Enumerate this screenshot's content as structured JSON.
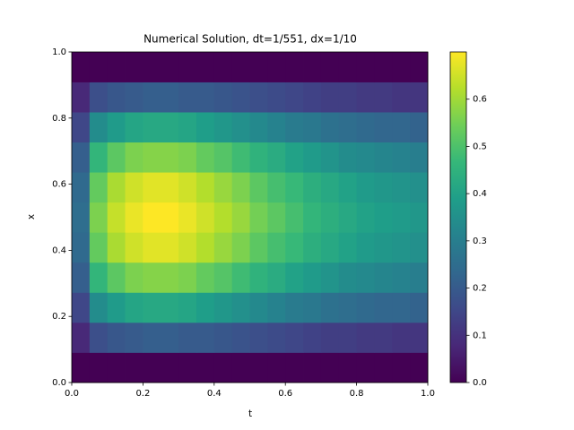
{
  "chart_data": {
    "type": "heatmap",
    "title": "Numerical Solution, dt=1/551, dx=1/10",
    "xlabel": "t",
    "ylabel": "x",
    "colormap": "viridis",
    "x_edges": [
      0,
      0.05,
      0.1,
      0.15,
      0.2,
      0.25,
      0.3,
      0.35,
      0.4,
      0.45,
      0.5,
      0.55,
      0.6,
      0.65,
      0.7,
      0.75,
      0.8,
      0.85,
      0.9,
      0.95,
      1
    ],
    "y_edges": [
      0,
      0.0909,
      0.1818,
      0.2727,
      0.3636,
      0.4545,
      0.5455,
      0.6364,
      0.7273,
      0.8182,
      0.9091,
      1
    ],
    "z": [
      [
        0,
        0,
        0,
        0,
        0,
        0,
        0,
        0,
        0,
        0,
        0,
        0,
        0,
        0,
        0,
        0,
        0,
        0,
        0,
        0
      ],
      [
        0.08,
        0.17,
        0.19,
        0.2,
        0.21,
        0.21,
        0.2,
        0.2,
        0.19,
        0.18,
        0.17,
        0.16,
        0.15,
        0.14,
        0.13,
        0.13,
        0.12,
        0.12,
        0.11,
        0.11
      ],
      [
        0.15,
        0.34,
        0.38,
        0.41,
        0.42,
        0.42,
        0.41,
        0.39,
        0.37,
        0.35,
        0.33,
        0.31,
        0.29,
        0.28,
        0.26,
        0.25,
        0.24,
        0.23,
        0.23,
        0.22
      ],
      [
        0.21,
        0.46,
        0.52,
        0.56,
        0.57,
        0.57,
        0.56,
        0.53,
        0.51,
        0.48,
        0.45,
        0.43,
        0.4,
        0.38,
        0.36,
        0.34,
        0.33,
        0.32,
        0.31,
        0.3
      ],
      [
        0.24,
        0.53,
        0.61,
        0.65,
        0.67,
        0.67,
        0.65,
        0.62,
        0.59,
        0.56,
        0.52,
        0.49,
        0.47,
        0.44,
        0.42,
        0.4,
        0.38,
        0.37,
        0.36,
        0.35
      ],
      [
        0.25,
        0.56,
        0.64,
        0.68,
        0.7,
        0.7,
        0.68,
        0.65,
        0.62,
        0.59,
        0.55,
        0.52,
        0.49,
        0.46,
        0.44,
        0.42,
        0.4,
        0.39,
        0.38,
        0.37
      ],
      [
        0.24,
        0.53,
        0.61,
        0.65,
        0.67,
        0.67,
        0.65,
        0.62,
        0.59,
        0.56,
        0.52,
        0.49,
        0.47,
        0.44,
        0.42,
        0.4,
        0.38,
        0.37,
        0.36,
        0.35
      ],
      [
        0.21,
        0.46,
        0.52,
        0.56,
        0.57,
        0.57,
        0.56,
        0.53,
        0.51,
        0.48,
        0.45,
        0.43,
        0.4,
        0.38,
        0.36,
        0.34,
        0.33,
        0.32,
        0.31,
        0.3
      ],
      [
        0.15,
        0.34,
        0.38,
        0.41,
        0.42,
        0.42,
        0.41,
        0.39,
        0.37,
        0.35,
        0.33,
        0.31,
        0.29,
        0.28,
        0.26,
        0.25,
        0.24,
        0.23,
        0.23,
        0.22
      ],
      [
        0.08,
        0.17,
        0.19,
        0.2,
        0.21,
        0.21,
        0.2,
        0.2,
        0.19,
        0.18,
        0.17,
        0.16,
        0.15,
        0.14,
        0.13,
        0.13,
        0.12,
        0.12,
        0.11,
        0.11
      ],
      [
        0,
        0,
        0,
        0,
        0,
        0,
        0,
        0,
        0,
        0,
        0,
        0,
        0,
        0,
        0,
        0,
        0,
        0,
        0,
        0
      ]
    ],
    "xlim": [
      0,
      1
    ],
    "ylim": [
      0,
      1
    ],
    "xticks": [
      {
        "value": 0,
        "label": "0.0"
      },
      0.2,
      0.4,
      0.6,
      0.8,
      {
        "value": 1,
        "label": "1.0"
      }
    ],
    "yticks": [
      {
        "value": 0,
        "label": "0.0"
      },
      0.2,
      0.4,
      0.6,
      0.8,
      {
        "value": 1,
        "label": "1.0"
      }
    ],
    "zlim": [
      0,
      0.7
    ],
    "zticks": [
      {
        "value": 0,
        "label": "0.0"
      },
      0.1,
      0.2,
      0.3,
      0.4,
      0.5,
      0.6
    ]
  }
}
